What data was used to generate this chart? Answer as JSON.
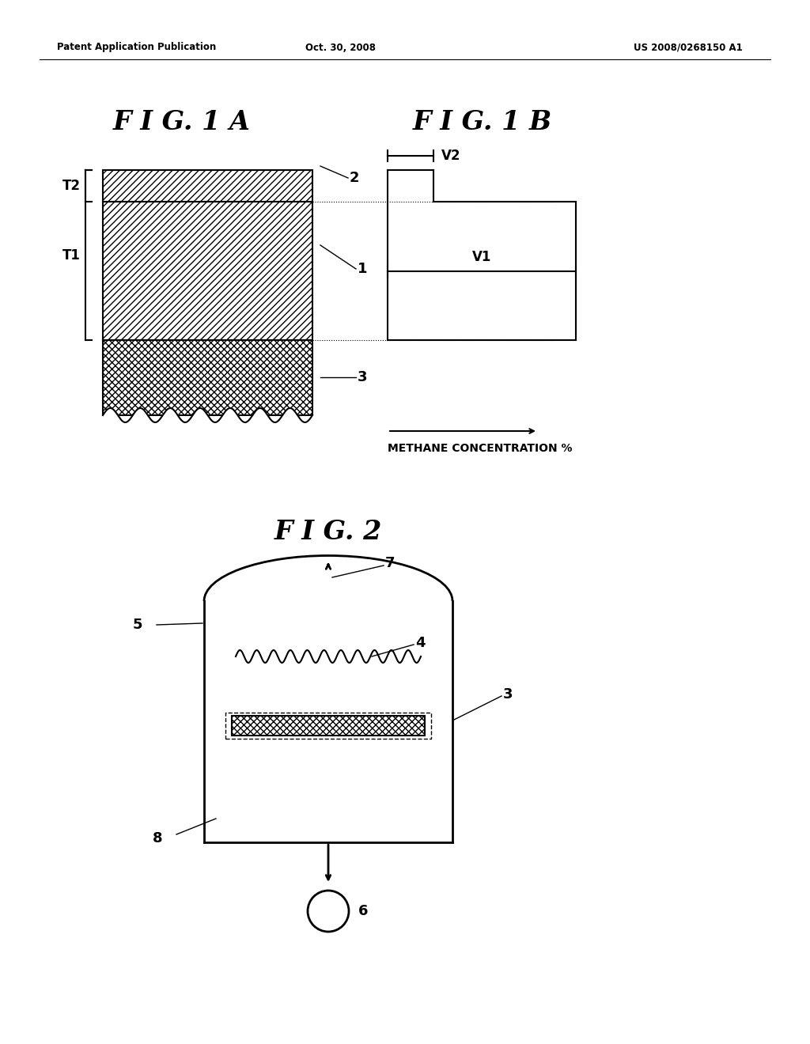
{
  "bg_color": "#ffffff",
  "header_left": "Patent Application Publication",
  "header_center": "Oct. 30, 2008",
  "header_right": "US 2008/0268150 A1",
  "fig1a_title": "F I G. 1 A",
  "fig1b_title": "F I G. 1 B",
  "fig2_title": "F I G. 2",
  "methane_label": "METHANE CONCENTRATION %"
}
